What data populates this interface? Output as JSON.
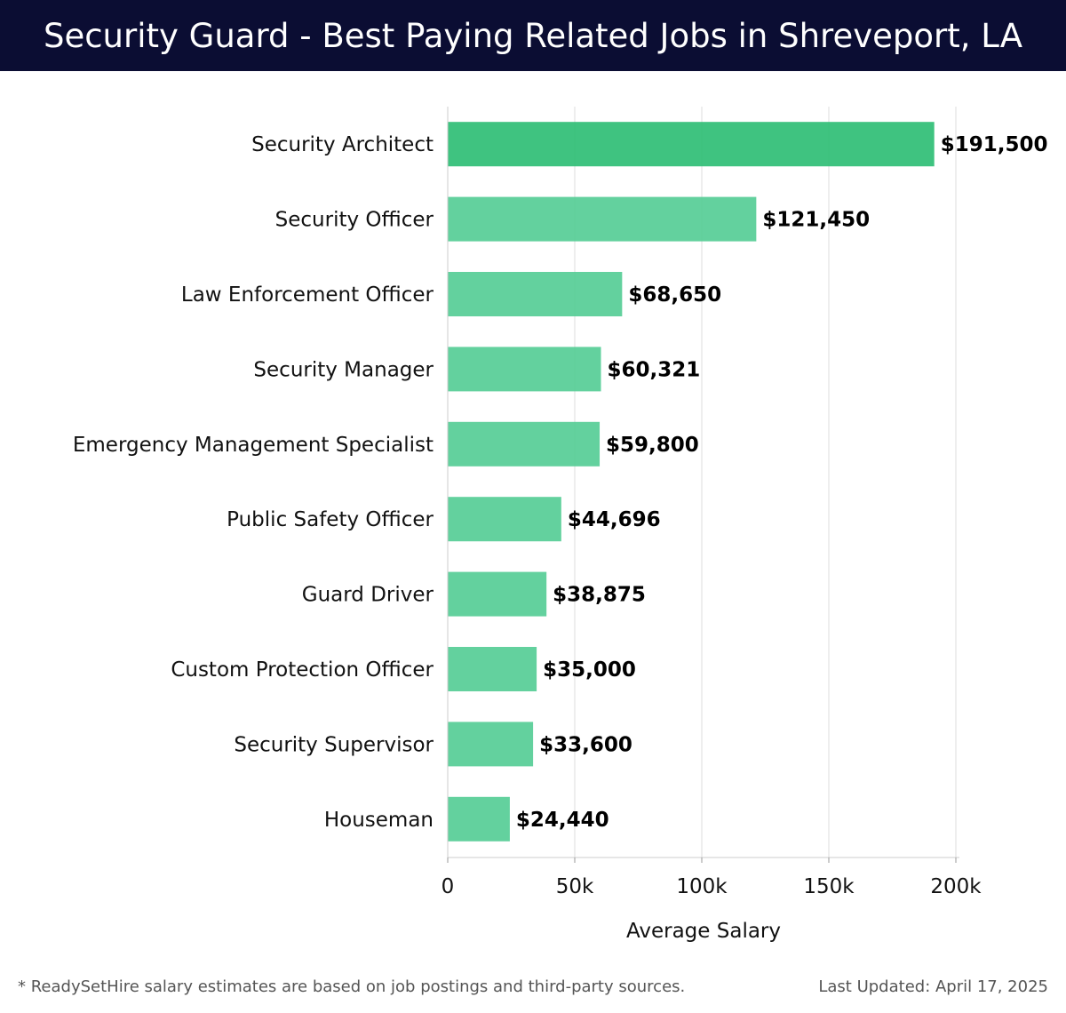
{
  "header": {
    "title": "Security Guard - Best Paying Related Jobs in Shreveport, LA"
  },
  "chart_data": {
    "type": "bar",
    "orientation": "horizontal",
    "title": "",
    "xlabel": "Average Salary",
    "ylabel": "",
    "xlim": [
      0,
      200000
    ],
    "xticks": [
      0,
      50000,
      100000,
      150000,
      200000
    ],
    "xtick_labels": [
      "0",
      "50k",
      "100k",
      "150k",
      "200k"
    ],
    "grid": true,
    "categories": [
      "Security Architect",
      "Security Officer",
      "Law Enforcement Officer",
      "Security Manager",
      "Emergency Management Specialist",
      "Public Safety Officer",
      "Guard Driver",
      "Custom Protection Officer",
      "Security Supervisor",
      "Houseman"
    ],
    "values": [
      191500,
      121450,
      68650,
      60321,
      59800,
      44696,
      38875,
      35000,
      33600,
      24440
    ],
    "value_labels": [
      "$191,500",
      "$121,450",
      "$68,650",
      "$60,321",
      "$59,800",
      "$44,696",
      "$38,875",
      "$35,000",
      "$33,600",
      "$24,440"
    ],
    "colors": {
      "bar_top": "#2abd72",
      "bar_rest": "#52cc93",
      "grid": "#dddddd",
      "axis": "#cccccc"
    }
  },
  "footer": {
    "note": "* ReadySetHire salary estimates are based on job postings and third-party sources.",
    "updated": "Last Updated: April 17, 2025"
  }
}
